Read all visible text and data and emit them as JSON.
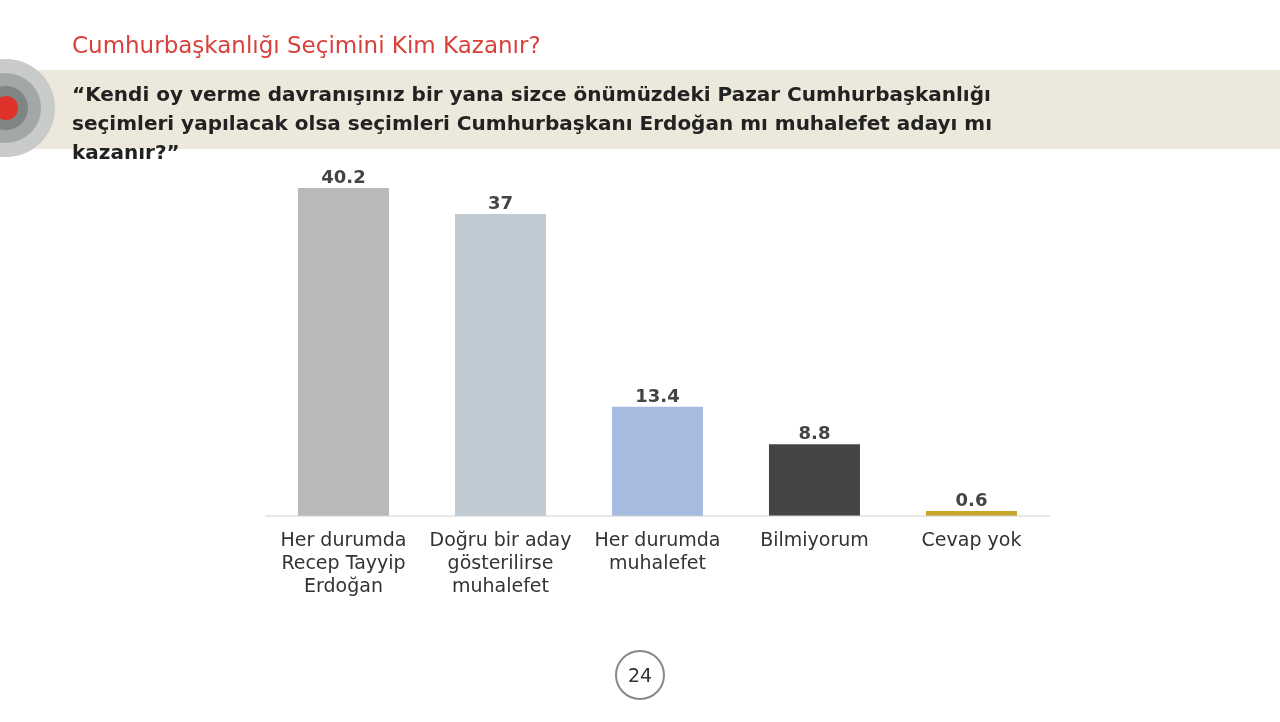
{
  "chart_data": {
    "type": "bar",
    "title": "Cumhurbaşkanlığı Seçimini Kim Kazanır?",
    "subtitle": "“Kendi oy verme davranışınız bir yana sizce önümüzdeki Pazar Cumhurbaşkanlığı seçimleri yapılacak olsa seçimleri Cumhurbaşkanı Erdoğan mı muhalefet adayı mı kazanır?”",
    "categories": [
      "Her durumda Recep Tayyip Erdoğan",
      "Doğru bir aday gösterilirse muhalefet",
      "Her durumda muhalefet",
      "Bilmiyorum",
      "Cevap yok"
    ],
    "values": [
      40.2,
      37,
      13.4,
      8.8,
      0.6
    ],
    "colors": [
      "#bab9b7",
      "#bfcad3",
      "#a6bbdf",
      "#444444",
      "#c9a62c"
    ],
    "data_labels": true,
    "annotations": [
      "24"
    ]
  }
}
